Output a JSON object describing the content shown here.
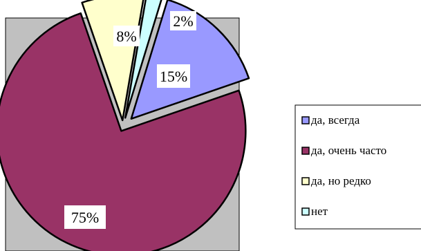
{
  "chart_data": {
    "type": "pie",
    "categories": [
      "да, всегда",
      "да, очень часто",
      "да, но редко",
      "нет"
    ],
    "values": [
      15,
      75,
      8,
      2
    ],
    "data_labels": [
      "15%",
      "75%",
      "8%",
      "2%"
    ],
    "colors": [
      "#9999ff",
      "#993366",
      "#ffffcc",
      "#ccffff"
    ],
    "exploded": true,
    "plot_area_color": "#c0c0c0",
    "legend_position": "right"
  }
}
